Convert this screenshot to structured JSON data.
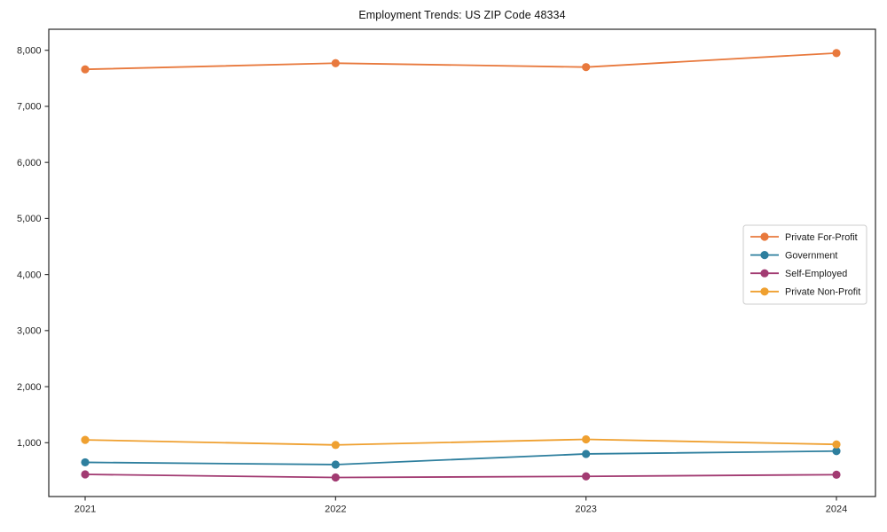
{
  "chart_data": {
    "type": "line",
    "title": "Employment Trends: US ZIP Code 48334",
    "xlabel": "",
    "ylabel": "",
    "x": [
      "2021",
      "2022",
      "2023",
      "2024"
    ],
    "series": [
      {
        "name": "Private For-Profit",
        "color": "#e8793d",
        "values": [
          7660,
          7770,
          7700,
          7950
        ]
      },
      {
        "name": "Government",
        "color": "#2e7f9e",
        "values": [
          650,
          610,
          800,
          850
        ]
      },
      {
        "name": "Self-Employed",
        "color": "#a23b72",
        "values": [
          435,
          380,
          400,
          430
        ]
      },
      {
        "name": "Private Non-Profit",
        "color": "#efa030",
        "values": [
          1050,
          960,
          1060,
          970
        ]
      }
    ],
    "ylim": [
      40,
      8375
    ],
    "yticks": [
      1000,
      2000,
      3000,
      4000,
      5000,
      6000,
      7000,
      8000
    ],
    "ytick_labels": [
      "1,000",
      "2,000",
      "3,000",
      "4,000",
      "5,000",
      "6,000",
      "7,000",
      "8,000"
    ],
    "xtick_labels": [
      "2021",
      "2022",
      "2023",
      "2024"
    ],
    "grid": false,
    "legend_position": "right-middle",
    "marker": "circle",
    "axis_color": "#262626",
    "tick_label_color": "#262626"
  }
}
